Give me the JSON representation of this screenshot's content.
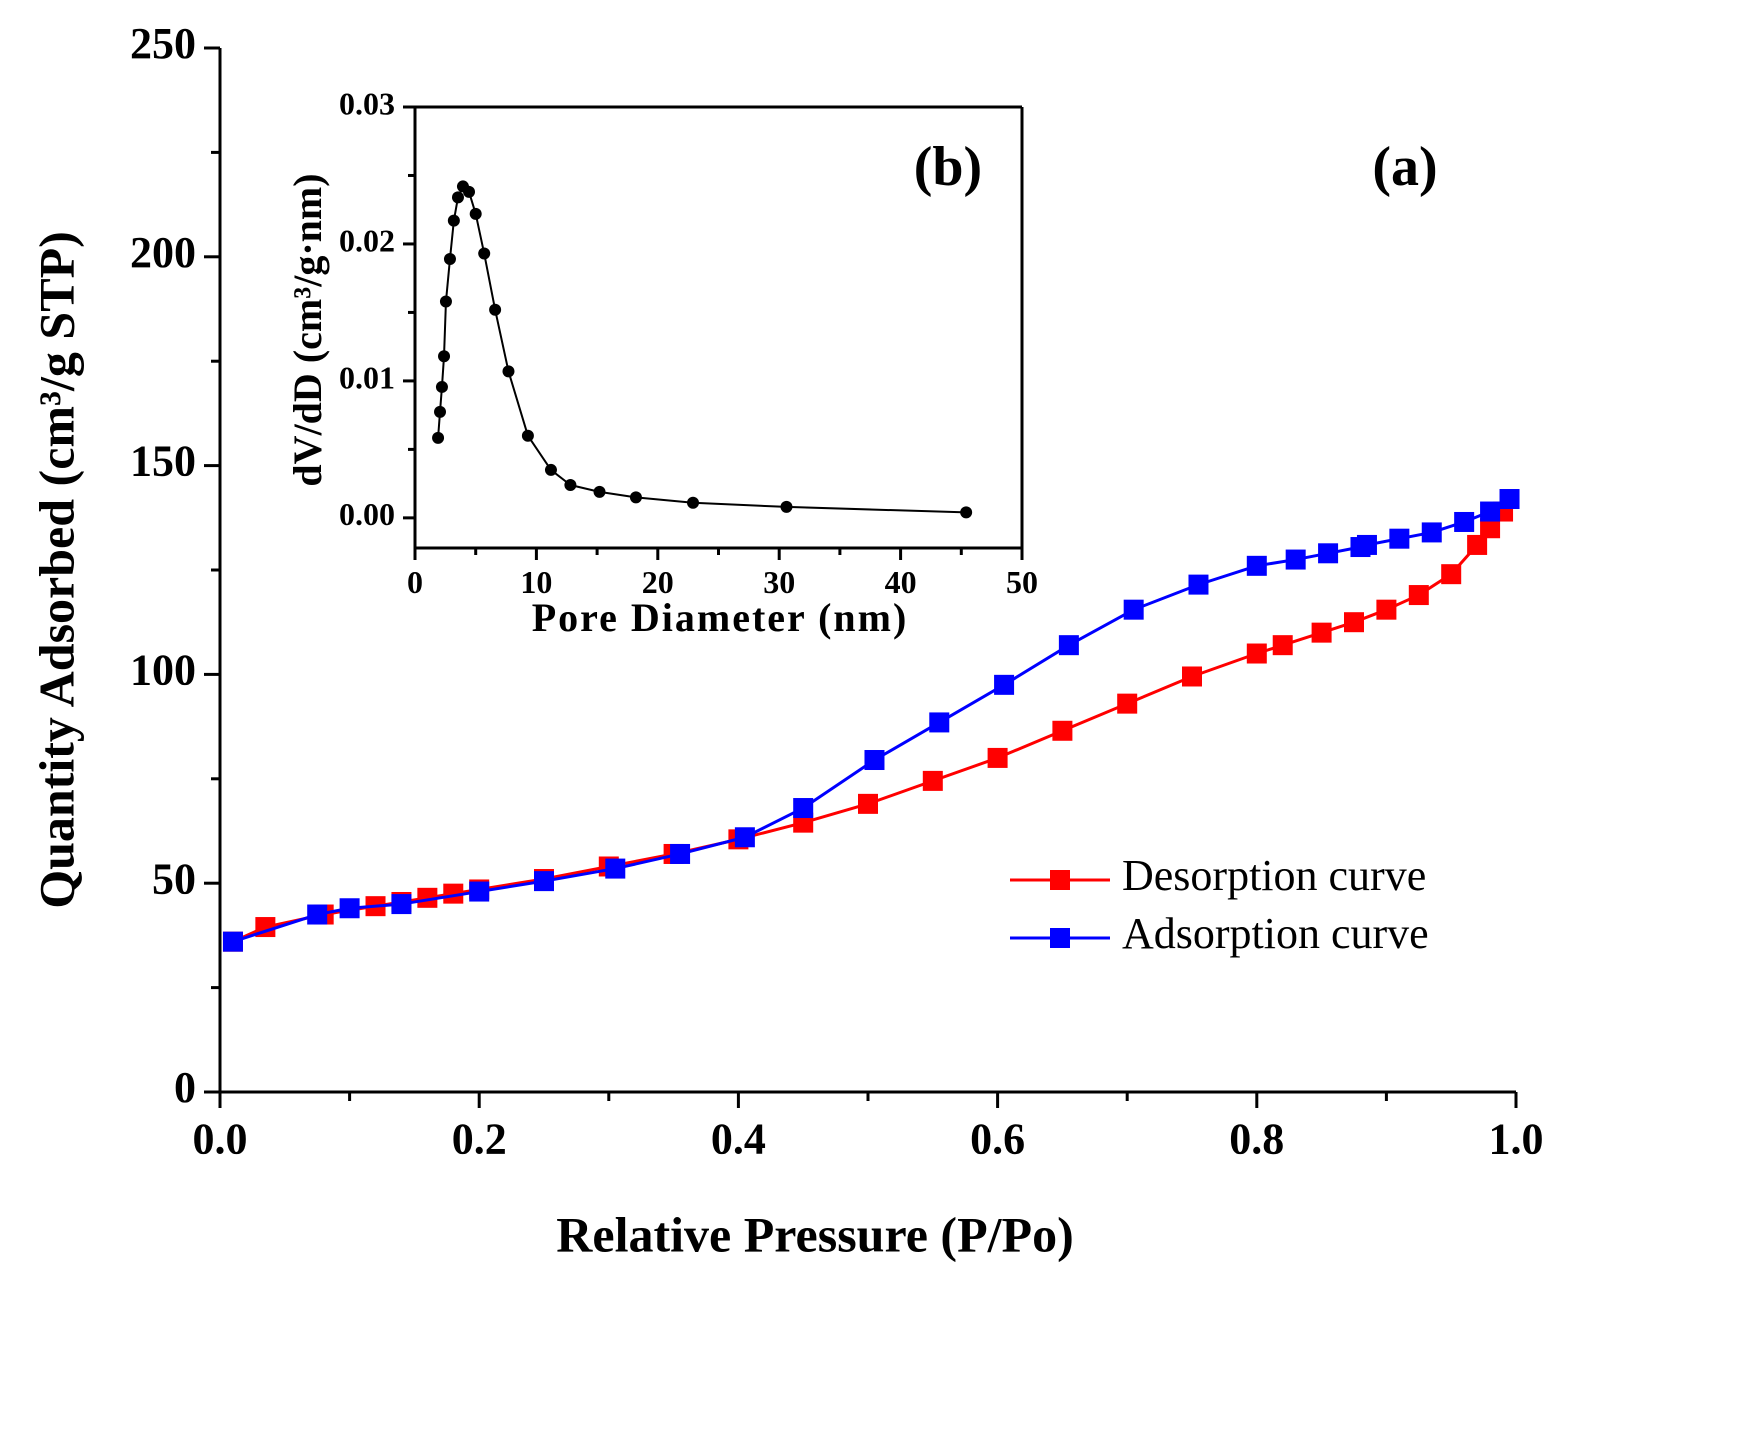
{
  "chart_data": [
    {
      "type": "line",
      "xlabel": "Relative Pressure (P/Po)",
      "ylabel": "Quantity Adsorbed (cm³/g STP)",
      "annotation": "(a)",
      "marker": "square",
      "legend": "lower right",
      "xlim": [
        0,
        1
      ],
      "ylim": [
        0,
        250
      ],
      "xticks": [
        {
          "value": 0,
          "label": "0.0"
        },
        0.2,
        0.4,
        0.6,
        0.8,
        {
          "value": 1,
          "label": "1.0"
        }
      ],
      "yticks": [
        0,
        50,
        100,
        150,
        200,
        250
      ],
      "xminorticks": [
        0.1,
        0.3,
        0.5,
        0.7,
        0.9
      ],
      "yminorticks": [
        25,
        75,
        125,
        175,
        225
      ],
      "series": [
        {
          "name": "Desorption curve",
          "color": "#ff0000",
          "x": [
            0.01,
            0.035,
            0.08,
            0.12,
            0.14,
            0.16,
            0.18,
            0.2,
            0.25,
            0.3,
            0.35,
            0.4,
            0.45,
            0.5,
            0.55,
            0.6,
            0.65,
            0.7,
            0.75,
            0.8,
            0.82,
            0.85,
            0.875,
            0.9,
            0.925,
            0.95,
            0.97,
            0.98,
            0.99
          ],
          "values": [
            36,
            39.5,
            42.5,
            44.5,
            45.5,
            46.5,
            47.5,
            48.5,
            51,
            54,
            57,
            60.5,
            64.5,
            69,
            74.5,
            80,
            86.5,
            93,
            99.5,
            105,
            107,
            110,
            112.5,
            115.5,
            119,
            124,
            131,
            135,
            139
          ]
        },
        {
          "name": "Adsorption curve",
          "color": "#0000ff",
          "x": [
            0.01,
            0.075,
            0.1,
            0.14,
            0.2,
            0.25,
            0.305,
            0.355,
            0.405,
            0.45,
            0.505,
            0.555,
            0.605,
            0.655,
            0.705,
            0.755,
            0.8,
            0.83,
            0.855,
            0.88,
            0.885,
            0.91,
            0.935,
            0.96,
            0.98,
            0.995
          ],
          "values": [
            36,
            42.5,
            44,
            45,
            48,
            50.5,
            53.5,
            57,
            61,
            68,
            79.5,
            88.5,
            97.5,
            107,
            115.5,
            121.5,
            126,
            127.5,
            129,
            130.5,
            131,
            132.5,
            134,
            136.5,
            139,
            142
          ]
        }
      ]
    },
    {
      "type": "line",
      "xlabel": "Pore Diameter (nm)",
      "ylabel": "dV/dD (cm³/g·nm)",
      "annotation": "(b)",
      "marker": "circle",
      "xlim": [
        0,
        50
      ],
      "ylim": [
        -0.0022,
        0.03
      ],
      "xticks": [
        0,
        10,
        20,
        30,
        40,
        50
      ],
      "yticks": [
        {
          "value": 0,
          "label": "0.00"
        },
        0.01,
        0.02,
        0.03
      ],
      "xminorticks": [
        5,
        15,
        25,
        35,
        45
      ],
      "yminorticks": [
        0.005,
        0.015,
        0.025
      ],
      "series": [
        {
          "color": "#000000",
          "x": [
            1.9,
            2.06,
            2.22,
            2.39,
            2.55,
            2.88,
            3.2,
            3.54,
            3.95,
            4.45,
            5.0,
            5.7,
            6.6,
            7.7,
            9.3,
            11.2,
            12.8,
            15.2,
            18.2,
            22.9,
            30.6,
            45.4
          ],
          "values": [
            0.00584,
            0.00774,
            0.00956,
            0.0118,
            0.0158,
            0.0189,
            0.0217,
            0.0234,
            0.0242,
            0.0238,
            0.0222,
            0.0193,
            0.0152,
            0.0107,
            0.006,
            0.0035,
            0.0024,
            0.0019,
            0.0015,
            0.0011,
            0.0008,
            0.0004
          ]
        }
      ]
    }
  ]
}
